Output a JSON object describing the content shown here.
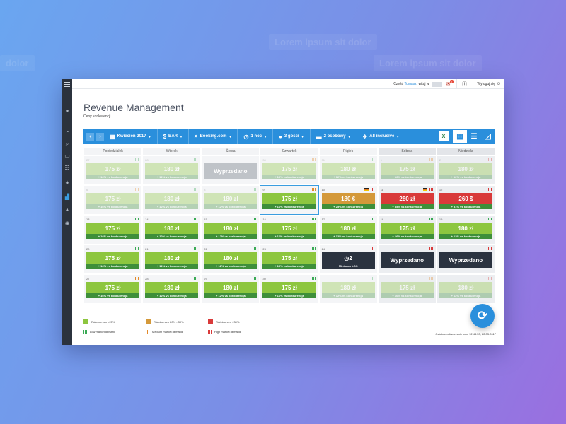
{
  "background": {
    "ghost_1": "Lorem ipsum sit dolor",
    "ghost_2": "Lorem ipsum sit dolor",
    "ghost_3": "dolor"
  },
  "topbar": {
    "greeting_prefix": "Cześć ",
    "user": "Tomasz",
    "greeting_suffix": ", witaj w",
    "messages_badge": "7",
    "info_icon": "info-icon",
    "logout_label": "Wyloguj się"
  },
  "page": {
    "title": "Revenue Management",
    "subtitle": "Ceny konkurencji"
  },
  "toolbar": {
    "month": "Kwiecień 2017",
    "rate": "BAR",
    "channel": "Booking.com",
    "nights": "1 noc",
    "guests": "3 gości",
    "persons": "2 osobowy",
    "board": "All inclusive"
  },
  "days": [
    "Poniedziałek",
    "Wtorek",
    "Środa",
    "Czwartek",
    "Piątek",
    "Sobota",
    "Niedziela"
  ],
  "calendar": [
    [
      {
        "date": "27",
        "type": "green",
        "faded": true,
        "price": "175 zł",
        "diff": "+ 16% vs konkurencja",
        "demand": [
          "g",
          "g",
          "g"
        ]
      },
      {
        "date": "28",
        "type": "green",
        "faded": true,
        "price": "180 zł",
        "diff": "+ 12% vs konkurencja",
        "demand": [
          "g",
          "g",
          "g"
        ]
      },
      {
        "date": "",
        "type": "sold",
        "price": "Wyprzedano"
      },
      {
        "date": "30",
        "type": "green",
        "faded": true,
        "price": "175 zł",
        "diff": "+ 16% vs konkurencja",
        "demand": [
          "o",
          "o",
          "o"
        ]
      },
      {
        "date": "31",
        "type": "green",
        "faded": true,
        "price": "180 zł",
        "diff": "+ 12% vs konkurencja",
        "demand": [
          "g",
          "g",
          "g"
        ]
      },
      {
        "date": "1",
        "type": "green",
        "faded": true,
        "price": "175 zł",
        "diff": "+ 16% vs konkurencja",
        "demand": [
          "o",
          "o",
          "o"
        ]
      },
      {
        "date": "2",
        "type": "green",
        "faded": true,
        "price": "180 zł",
        "diff": "+ 12% vs konkurencja",
        "demand": [
          "r",
          "r",
          "r"
        ]
      }
    ],
    [
      {
        "date": "6",
        "type": "green",
        "faded": true,
        "price": "175 zł",
        "diff": "+ 16% vs konkurencja",
        "demand": [
          "o",
          "o",
          "o"
        ]
      },
      {
        "date": "7",
        "type": "green",
        "faded": true,
        "price": "180 zł",
        "diff": "+ 12% vs konkurencja",
        "demand": [
          "g",
          "g",
          "g"
        ]
      },
      {
        "date": "8",
        "type": "green",
        "faded": true,
        "price": "180 zł",
        "diff": "+ 12% vs konkurencja",
        "demand": [
          "g",
          "g",
          "g"
        ]
      },
      {
        "date": "9",
        "type": "green",
        "selected": true,
        "price": "175 zł",
        "diff": "+ 16% vs konkurencja",
        "demand": [
          "o",
          "o",
          "o"
        ]
      },
      {
        "date": "10",
        "type": "orange",
        "flag": true,
        "price": "180 €",
        "diff": "+ 25% vs konkurencja",
        "demand": [
          "r",
          "r",
          "r"
        ]
      },
      {
        "date": "11",
        "type": "red",
        "flag": true,
        "price": "280 zł",
        "diff": "+ 35% vs konkurencja",
        "demand": [
          "r",
          "r",
          "r"
        ]
      },
      {
        "date": "12",
        "type": "red",
        "price": "260 $",
        "diff": "+ 31% vs konkurencja",
        "demand": [
          "r",
          "r",
          "r"
        ]
      }
    ],
    [
      {
        "date": "13",
        "type": "green",
        "price": "175 zł",
        "diff": "+ 16% vs konkurencja",
        "demand": [
          "g",
          "g",
          "g"
        ]
      },
      {
        "date": "14",
        "type": "green",
        "price": "180 zł",
        "diff": "+ 12% vs konkurencja",
        "demand": [
          "g",
          "g",
          "g"
        ]
      },
      {
        "date": "15",
        "type": "green",
        "price": "180 zł",
        "diff": "+ 12% vs konkurencja",
        "demand": [
          "g",
          "g",
          "g"
        ]
      },
      {
        "date": "16",
        "type": "green",
        "price": "175 zł",
        "diff": "+ 16% vs konkurencja",
        "demand": [
          "g",
          "g",
          "g"
        ]
      },
      {
        "date": "17",
        "type": "green",
        "price": "180 zł",
        "diff": "+ 12% vs konkurencja",
        "demand": [
          "g",
          "g",
          "g"
        ]
      },
      {
        "date": "18",
        "type": "green",
        "price": "175 zł",
        "diff": "+ 16% vs konkurencja",
        "demand": [
          "g",
          "g",
          "g"
        ]
      },
      {
        "date": "19",
        "type": "green",
        "price": "180 zł",
        "diff": "+ 12% vs konkurencja",
        "demand": [
          "g",
          "g",
          "g"
        ]
      }
    ],
    [
      {
        "date": "20",
        "type": "green",
        "price": "175 zł",
        "diff": "+ 16% vs konkurencja",
        "demand": [
          "g",
          "g",
          "g"
        ]
      },
      {
        "date": "21",
        "type": "green",
        "price": "180 zł",
        "diff": "+ 12% vs konkurencja",
        "demand": [
          "g",
          "g",
          "g"
        ]
      },
      {
        "date": "22",
        "type": "green",
        "price": "180 zł",
        "diff": "+ 12% vs konkurencja",
        "demand": [
          "g",
          "g",
          "g"
        ]
      },
      {
        "date": "23",
        "type": "green",
        "price": "175 zł",
        "diff": "+ 16% vs konkurencja",
        "demand": [
          "g",
          "g",
          "g"
        ]
      },
      {
        "date": "24",
        "type": "los",
        "price": "2",
        "diff": "Minimum LOS",
        "demand": [
          "r",
          "r",
          "r"
        ]
      },
      {
        "date": "",
        "type": "sold-dark",
        "price": "Wyprzedano",
        "demand": [
          "r",
          "r",
          "r"
        ]
      },
      {
        "date": "",
        "type": "sold-dark",
        "price": "Wyprzedano",
        "demand": [
          "r",
          "r",
          "r"
        ]
      }
    ],
    [
      {
        "date": "27",
        "type": "green",
        "price": "175 zł",
        "diff": "+ 16% vs konkurencja",
        "demand": [
          "o",
          "o",
          "o"
        ]
      },
      {
        "date": "28",
        "type": "green",
        "price": "180 zł",
        "diff": "+ 12% vs konkurencja",
        "demand": [
          "g",
          "g",
          "g"
        ]
      },
      {
        "date": "29",
        "type": "green",
        "price": "180 zł",
        "diff": "+ 12% vs konkurencja",
        "demand": [
          "g",
          "g",
          "g"
        ]
      },
      {
        "date": "30",
        "type": "green",
        "price": "175 zł",
        "diff": "+ 16% vs konkurencja",
        "demand": [
          "g",
          "g",
          "g"
        ]
      },
      {
        "date": "",
        "type": "green",
        "faded": true,
        "price": "180 zł",
        "diff": "+ 12% vs konkurencja",
        "demand": [
          "g",
          "g",
          "g"
        ]
      },
      {
        "date": "",
        "type": "green",
        "faded": true,
        "price": "175 zł",
        "diff": "+ 16% vs konkurencja",
        "demand": [
          "o",
          "o",
          "o"
        ]
      },
      {
        "date": "",
        "type": "green",
        "faded": true,
        "price": "180 zł",
        "diff": "+ 12% vs konkurencja",
        "demand": [
          "r",
          "r",
          "r"
        ]
      }
    ]
  ],
  "legend": {
    "diff_low": "Różnica cen <20%",
    "diff_mid": "Różnica cen 20% - 30%",
    "diff_high": "Różnica cen >30%",
    "demand_low": "Low market demand",
    "demand_mid": "Medium market demand",
    "demand_high": "High  market demand",
    "colors": {
      "low": "#8dc63f",
      "mid": "#d4993a",
      "high": "#d93a3a"
    }
  },
  "footer": {
    "updated": "Ostatnie odświeżenie cen: 12:43:53, 22.03.2017"
  }
}
